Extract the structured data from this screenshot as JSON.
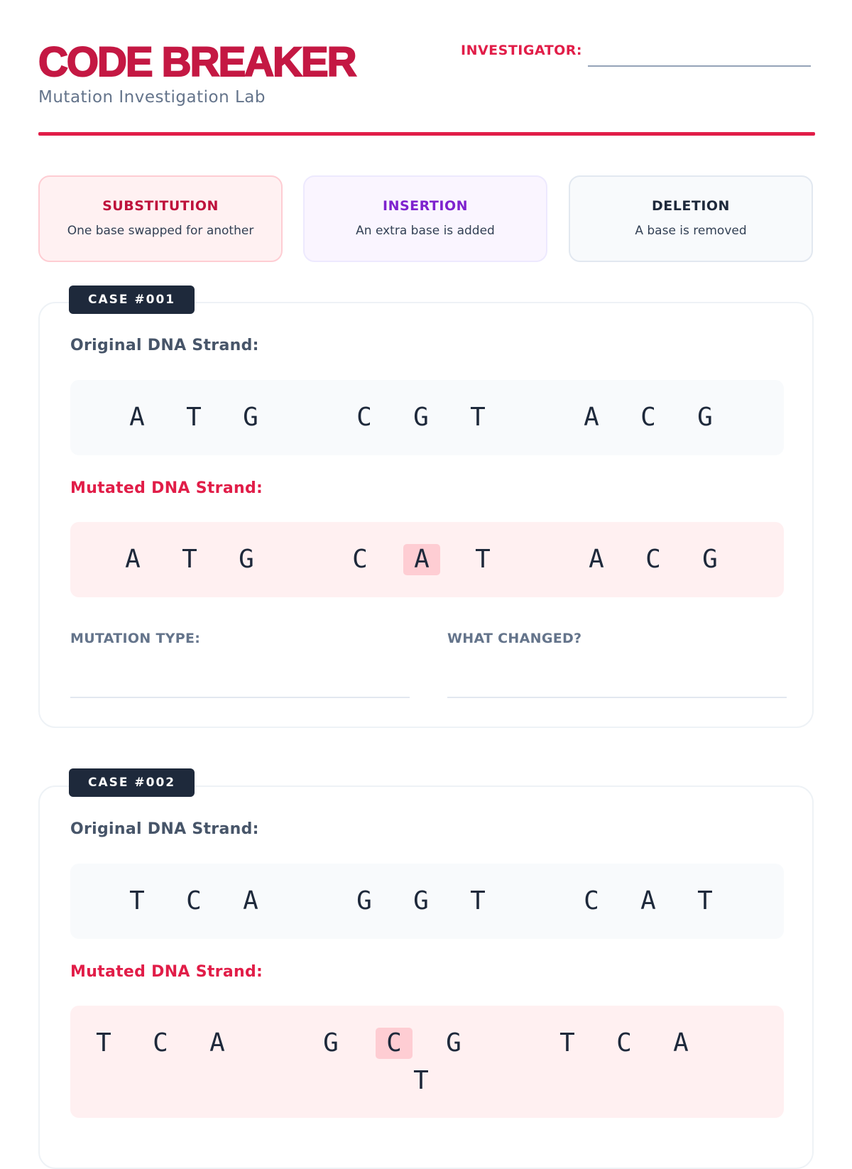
{
  "header": {
    "title": "CODE BREAKER",
    "subtitle": "Mutation Investigation Lab",
    "investigator_label": "INVESTIGATOR:",
    "investigator_value": ""
  },
  "legend": [
    {
      "title": "SUBSTITUTION",
      "desc": "One base swapped for another"
    },
    {
      "title": "INSERTION",
      "desc": "An extra base is added"
    },
    {
      "title": "DELETION",
      "desc": "A base is removed"
    }
  ],
  "colors": {
    "accent": "#e11d48",
    "title": "#c41843",
    "highlight": "#fecdd3",
    "tag_bg": "#1e293b"
  },
  "cases": [
    {
      "tag": "CASE #001",
      "original_label": "Original DNA Strand:",
      "mutated_label": "Mutated DNA Strand:",
      "original": [
        "A",
        "T",
        "G",
        "C",
        "G",
        "T",
        "A",
        "C",
        "G"
      ],
      "mutated": [
        "A",
        "T",
        "G",
        "C",
        "A",
        "T",
        "A",
        "C",
        "G"
      ],
      "highlighted_mutated_index": 4,
      "mutation_type_label": "MUTATION TYPE:",
      "what_changed_label": "WHAT CHANGED?"
    },
    {
      "tag": "CASE #002",
      "original_label": "Original DNA Strand:",
      "mutated_label": "Mutated DNA Strand:",
      "original": [
        "T",
        "C",
        "A",
        "G",
        "G",
        "T",
        "C",
        "A",
        "T"
      ],
      "mutated": [
        "T",
        "C",
        "A",
        "G",
        "C",
        "G",
        "T",
        "C",
        "A"
      ],
      "mutated_extra": "T",
      "highlighted_mutated_index": 4
    }
  ]
}
